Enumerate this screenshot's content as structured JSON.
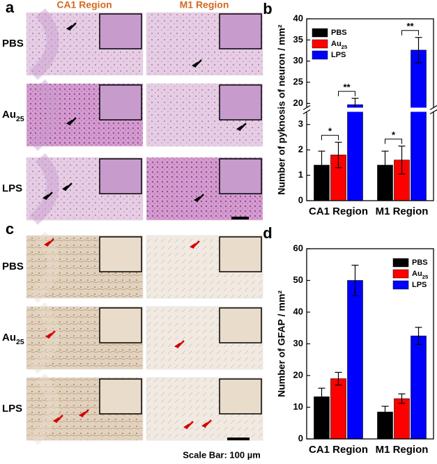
{
  "figure": {
    "panel_labels": [
      "a",
      "b",
      "c",
      "d"
    ],
    "columns": [
      "CA1 Region",
      "M1 Region"
    ],
    "rows": [
      "PBS",
      "Au25",
      "LPS"
    ],
    "scale_bar": "Scale Bar: 100 µm"
  },
  "chart_data": [
    {
      "type": "bar",
      "ylabel": "Number of pyknosis of neuron / mm²",
      "categories": [
        "CA1 Region",
        "M1 Region"
      ],
      "series": [
        {
          "name": "PBS",
          "color": "#000000",
          "values": [
            1.4,
            1.4
          ],
          "errors": [
            0.55,
            0.55
          ]
        },
        {
          "name": "Au25",
          "color": "#ff0000",
          "values": [
            1.8,
            1.6
          ],
          "errors": [
            0.5,
            0.55
          ]
        },
        {
          "name": "LPS",
          "color": "#0000ff",
          "values": [
            19.7,
            32.6
          ],
          "errors": [
            1.5,
            3.0
          ]
        }
      ],
      "ylim": [
        0,
        40
      ],
      "ybreak": [
        3.5,
        19
      ],
      "yticks": [
        0,
        1,
        2,
        3,
        20,
        25,
        30,
        35,
        40
      ],
      "legend": "upper left",
      "annotations": [
        "*",
        "**",
        "*",
        "**"
      ]
    },
    {
      "type": "bar",
      "ylabel": "Number of GFAP / mm²",
      "categories": [
        "CA1 Region",
        "M1 Region"
      ],
      "series": [
        {
          "name": "PBS",
          "color": "#000000",
          "values": [
            13.3,
            8.5
          ],
          "errors": [
            2.7,
            1.8
          ]
        },
        {
          "name": "Au25",
          "color": "#ff0000",
          "values": [
            19.0,
            12.7
          ],
          "errors": [
            2.0,
            1.5
          ]
        },
        {
          "name": "LPS",
          "color": "#0000ff",
          "values": [
            50.0,
            32.5
          ],
          "errors": [
            4.8,
            2.7
          ]
        }
      ],
      "ylim": [
        0,
        60
      ],
      "yticks": [
        0,
        10,
        20,
        30,
        40,
        50,
        60
      ],
      "legend": "upper right"
    }
  ]
}
